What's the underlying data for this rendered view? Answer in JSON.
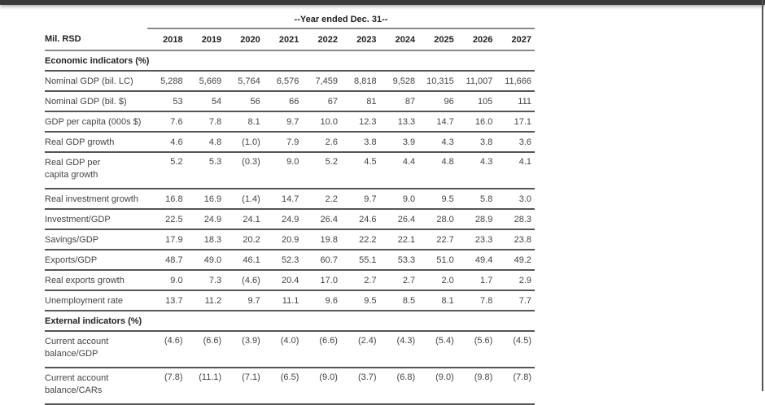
{
  "table": {
    "group_header": "--Year ended Dec. 31--",
    "unit_label": "Mil. RSD",
    "years": [
      "2018",
      "2019",
      "2020",
      "2021",
      "2022",
      "2023",
      "2024",
      "2025",
      "2026",
      "2027"
    ],
    "sections": [
      {
        "title": "Economic indicators (%)",
        "rows": [
          {
            "label": "Nominal GDP (bil. LC)",
            "values": [
              "5,288",
              "5,669",
              "5,764",
              "6,576",
              "7,459",
              "8,818",
              "9,528",
              "10,315",
              "11,007",
              "11,666"
            ]
          },
          {
            "label": "Nominal GDP (bil. $)",
            "values": [
              "53",
              "54",
              "56",
              "66",
              "67",
              "81",
              "87",
              "96",
              "105",
              "111"
            ]
          },
          {
            "label": "GDP per capita (000s $)",
            "values": [
              "7.6",
              "7.8",
              "8.1",
              "9.7",
              "10.0",
              "12.3",
              "13.3",
              "14.7",
              "16.0",
              "17.1"
            ]
          },
          {
            "label": "Real GDP growth",
            "values": [
              "4.6",
              "4.8",
              "(1.0)",
              "7.9",
              "2.6",
              "3.8",
              "3.9",
              "4.3",
              "3.8",
              "3.6"
            ]
          },
          {
            "label": "Real GDP per capita growth",
            "values": [
              "5.2",
              "5.3",
              "(0.3)",
              "9.0",
              "5.2",
              "4.5",
              "4.4",
              "4.8",
              "4.3",
              "4.1"
            ],
            "wrap": true
          },
          {
            "label": "Real investment growth",
            "values": [
              "16.8",
              "16.9",
              "(1.4)",
              "14.7",
              "2.2",
              "9.7",
              "9.0",
              "9.5",
              "5.8",
              "3.0"
            ]
          },
          {
            "label": "Investment/GDP",
            "values": [
              "22.5",
              "24.9",
              "24.1",
              "24.9",
              "26.4",
              "24.6",
              "26.4",
              "28.0",
              "28.9",
              "28.3"
            ]
          },
          {
            "label": "Savings/GDP",
            "values": [
              "17.9",
              "18.3",
              "20.2",
              "20.9",
              "19.8",
              "22.2",
              "22.1",
              "22.7",
              "23.3",
              "23.8"
            ]
          },
          {
            "label": "Exports/GDP",
            "values": [
              "48.7",
              "49.0",
              "46.1",
              "52.3",
              "60.7",
              "55.1",
              "53.3",
              "51.0",
              "49.4",
              "49.2"
            ]
          },
          {
            "label": "Real exports growth",
            "values": [
              "9.0",
              "7.3",
              "(4.6)",
              "20.4",
              "17.0",
              "2.7",
              "2.7",
              "2.0",
              "1.7",
              "2.9"
            ]
          },
          {
            "label": "Unemployment rate",
            "values": [
              "13.7",
              "11.2",
              "9.7",
              "11.1",
              "9.6",
              "9.5",
              "8.5",
              "8.1",
              "7.8",
              "7.7"
            ]
          }
        ]
      },
      {
        "title": "External indicators (%)",
        "rows": [
          {
            "label": "Current account balance/GDP",
            "values": [
              "(4.6)",
              "(6.6)",
              "(3.9)",
              "(4.0)",
              "(6.6)",
              "(2.4)",
              "(4.3)",
              "(5.4)",
              "(5.6)",
              "(4.5)"
            ],
            "wrap": true
          },
          {
            "label": "Current account balance/CARs",
            "values": [
              "(7.8)",
              "(11.1)",
              "(7.1)",
              "(6.5)",
              "(9.0)",
              "(3.7)",
              "(6.8)",
              "(9.0)",
              "(9.8)",
              "(7.8)"
            ],
            "wrap": true
          }
        ]
      }
    ]
  }
}
